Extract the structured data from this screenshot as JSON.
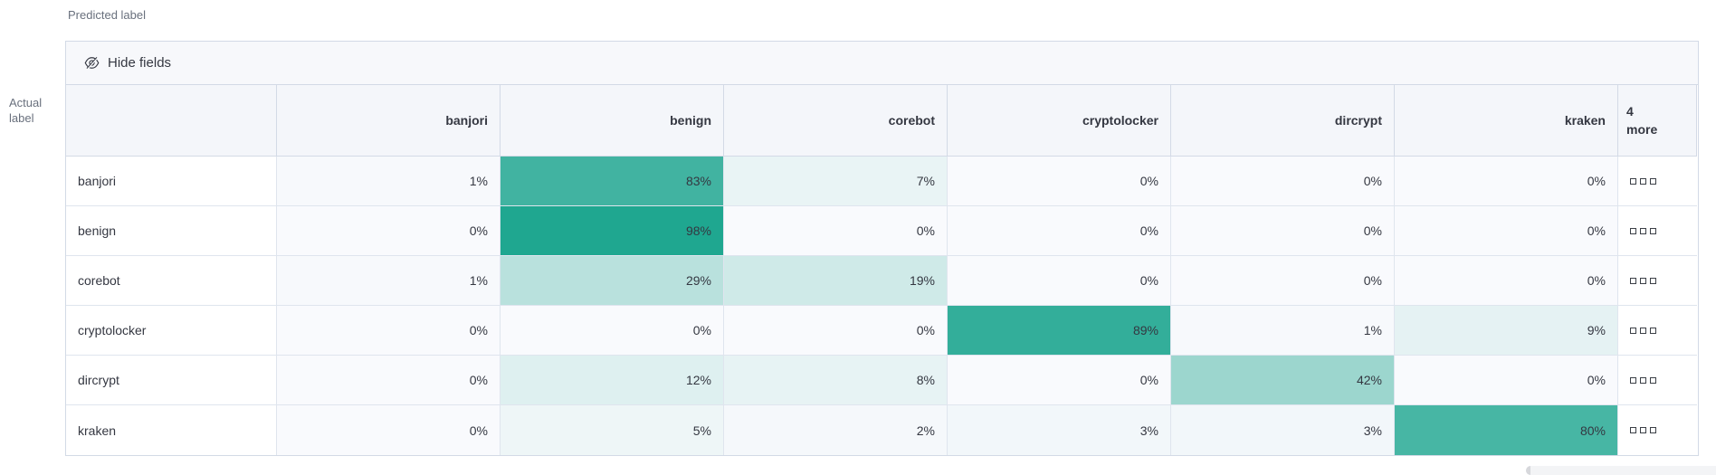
{
  "axis": {
    "predicted": "Predicted label",
    "actual_line1": "Actual",
    "actual_line2": "label"
  },
  "toolbar": {
    "hide_fields_label": "Hide fields",
    "hide_fields_icon": "eye-closed-icon"
  },
  "matrix": {
    "columns": [
      "banjori",
      "benign",
      "corebot",
      "cryptolocker",
      "dircrypt",
      "kraken"
    ],
    "more_column": {
      "count": "4",
      "label": "more",
      "overflow_icon": "boxes-horizontal-icon"
    },
    "rows": [
      {
        "label": "banjori",
        "values": [
          1,
          83,
          7,
          0,
          0,
          0
        ]
      },
      {
        "label": "benign",
        "values": [
          0,
          98,
          0,
          0,
          0,
          0
        ]
      },
      {
        "label": "corebot",
        "values": [
          1,
          29,
          19,
          0,
          0,
          0
        ]
      },
      {
        "label": "cryptolocker",
        "values": [
          0,
          0,
          0,
          89,
          1,
          9
        ]
      },
      {
        "label": "dircrypt",
        "values": [
          0,
          12,
          8,
          0,
          42,
          0
        ]
      },
      {
        "label": "kraken",
        "values": [
          0,
          5,
          2,
          3,
          3,
          80
        ]
      }
    ],
    "value_suffix": "%"
  },
  "colors": {
    "heat_full": "#1BA58E",
    "heat_base": "#F9FAFD",
    "border": "#D3DAE6",
    "header_bg": "#F4F6FA",
    "text": "#343741",
    "muted_text": "#69707D"
  }
}
